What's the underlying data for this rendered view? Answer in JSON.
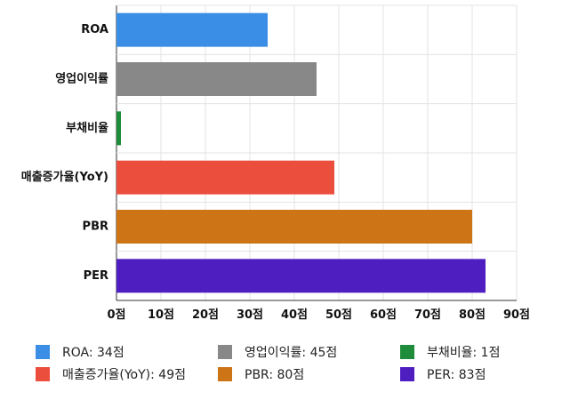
{
  "chart_data": {
    "type": "bar",
    "orientation": "horizontal",
    "categories": [
      "ROA",
      "영업이익률",
      "부채비율",
      "매출증가율(YoY)",
      "PBR",
      "PER"
    ],
    "values": [
      34,
      45,
      1,
      49,
      80,
      83
    ],
    "colors": [
      "#3a8ee6",
      "#888888",
      "#1e8c3a",
      "#eb4e3d",
      "#cc7416",
      "#4f1ec0"
    ],
    "xlim": [
      0,
      90
    ],
    "xticks": [
      0,
      10,
      20,
      30,
      40,
      50,
      60,
      70,
      80,
      90
    ],
    "tick_suffix": "점",
    "grid": true,
    "legend_position": "bottom"
  },
  "legend": [
    {
      "label": "ROA: 34점",
      "color": "#3a8ee6"
    },
    {
      "label": "영업이익률: 45점",
      "color": "#888888"
    },
    {
      "label": "부채비율: 1점",
      "color": "#1e8c3a"
    },
    {
      "label": "매출증가율(YoY): 49점",
      "color": "#eb4e3d"
    },
    {
      "label": "PBR: 80점",
      "color": "#cc7416"
    },
    {
      "label": "PER: 83점",
      "color": "#4f1ec0"
    }
  ]
}
